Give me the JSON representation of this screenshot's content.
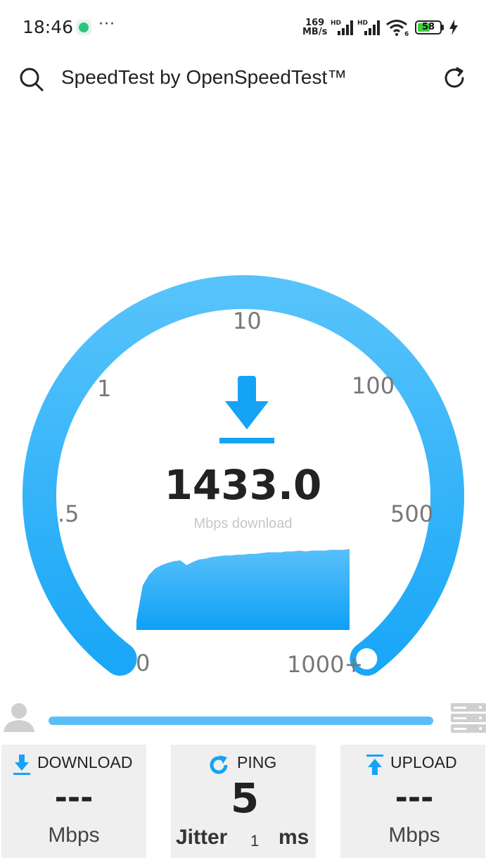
{
  "status_bar": {
    "time": "18:46",
    "dots": "···",
    "net_speed_value": "169",
    "net_speed_unit": "MB/s",
    "sim1_label": "HD",
    "sim2_label": "HD",
    "wifi_label": "6",
    "battery": "58",
    "battery_level": 0.58
  },
  "app_bar": {
    "title": "SpeedTest by OpenSpeedTest™"
  },
  "gauge": {
    "labels": {
      "l0": "0",
      "l05": ".5",
      "l1": "1",
      "l10": "10",
      "l100": "100",
      "l500": "500",
      "l1000": "1000+"
    },
    "value": "1433.0",
    "unit": "Mbps download",
    "colors": {
      "arc": "#3fb2f8",
      "accent": "#15a3f5"
    }
  },
  "graph_samples": [
    0.12,
    0.55,
    0.68,
    0.76,
    0.8,
    0.83,
    0.85,
    0.86,
    0.8,
    0.84,
    0.87,
    0.88,
    0.9,
    0.91,
    0.92,
    0.92,
    0.93,
    0.93,
    0.94,
    0.94,
    0.95,
    0.96,
    0.96,
    0.96,
    0.97,
    0.97,
    0.98,
    0.97,
    0.98,
    0.98,
    0.98,
    0.99,
    0.99,
    0.99,
    1.0
  ],
  "cards": {
    "download": {
      "title": "DOWNLOAD",
      "value": "---",
      "unit": "Mbps"
    },
    "ping": {
      "title": "PING",
      "value": "5",
      "jitter_label": "Jitter",
      "jitter_value": "1",
      "unit": "ms"
    },
    "upload": {
      "title": "UPLOAD",
      "value": "---",
      "unit": "Mbps"
    }
  }
}
